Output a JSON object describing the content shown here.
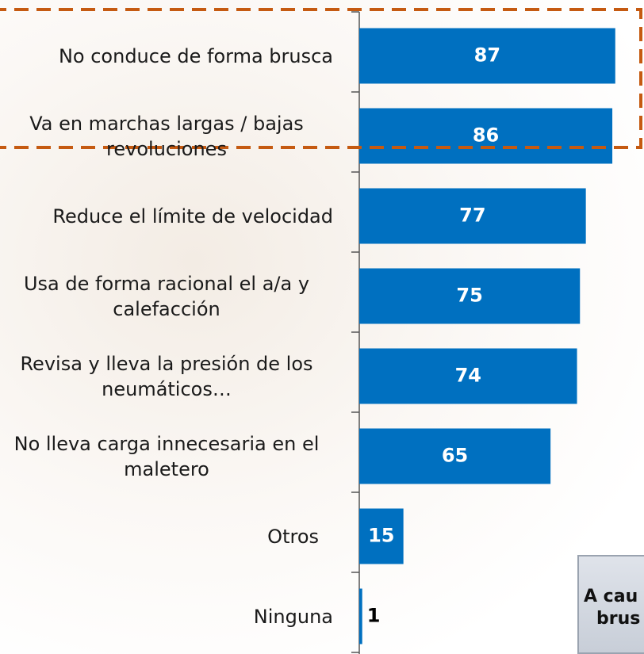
{
  "chart_data": {
    "type": "bar",
    "orientation": "horizontal",
    "categories": [
      "No conduce de forma brusca",
      "Va en marchas largas / bajas revoluciones",
      "Reduce el límite de velocidad",
      "Usa de forma racional el a/a y calefacción",
      "Revisa y lleva la presión de los neumáticos…",
      "No lleva carga innecesaria en el maletero",
      "Otros",
      "Ninguna"
    ],
    "values": [
      87,
      86,
      77,
      75,
      74,
      65,
      15,
      1
    ],
    "color": "#0070c0",
    "highlight_color": "#c55a11",
    "annotation": [
      "A cau",
      "brus"
    ]
  }
}
